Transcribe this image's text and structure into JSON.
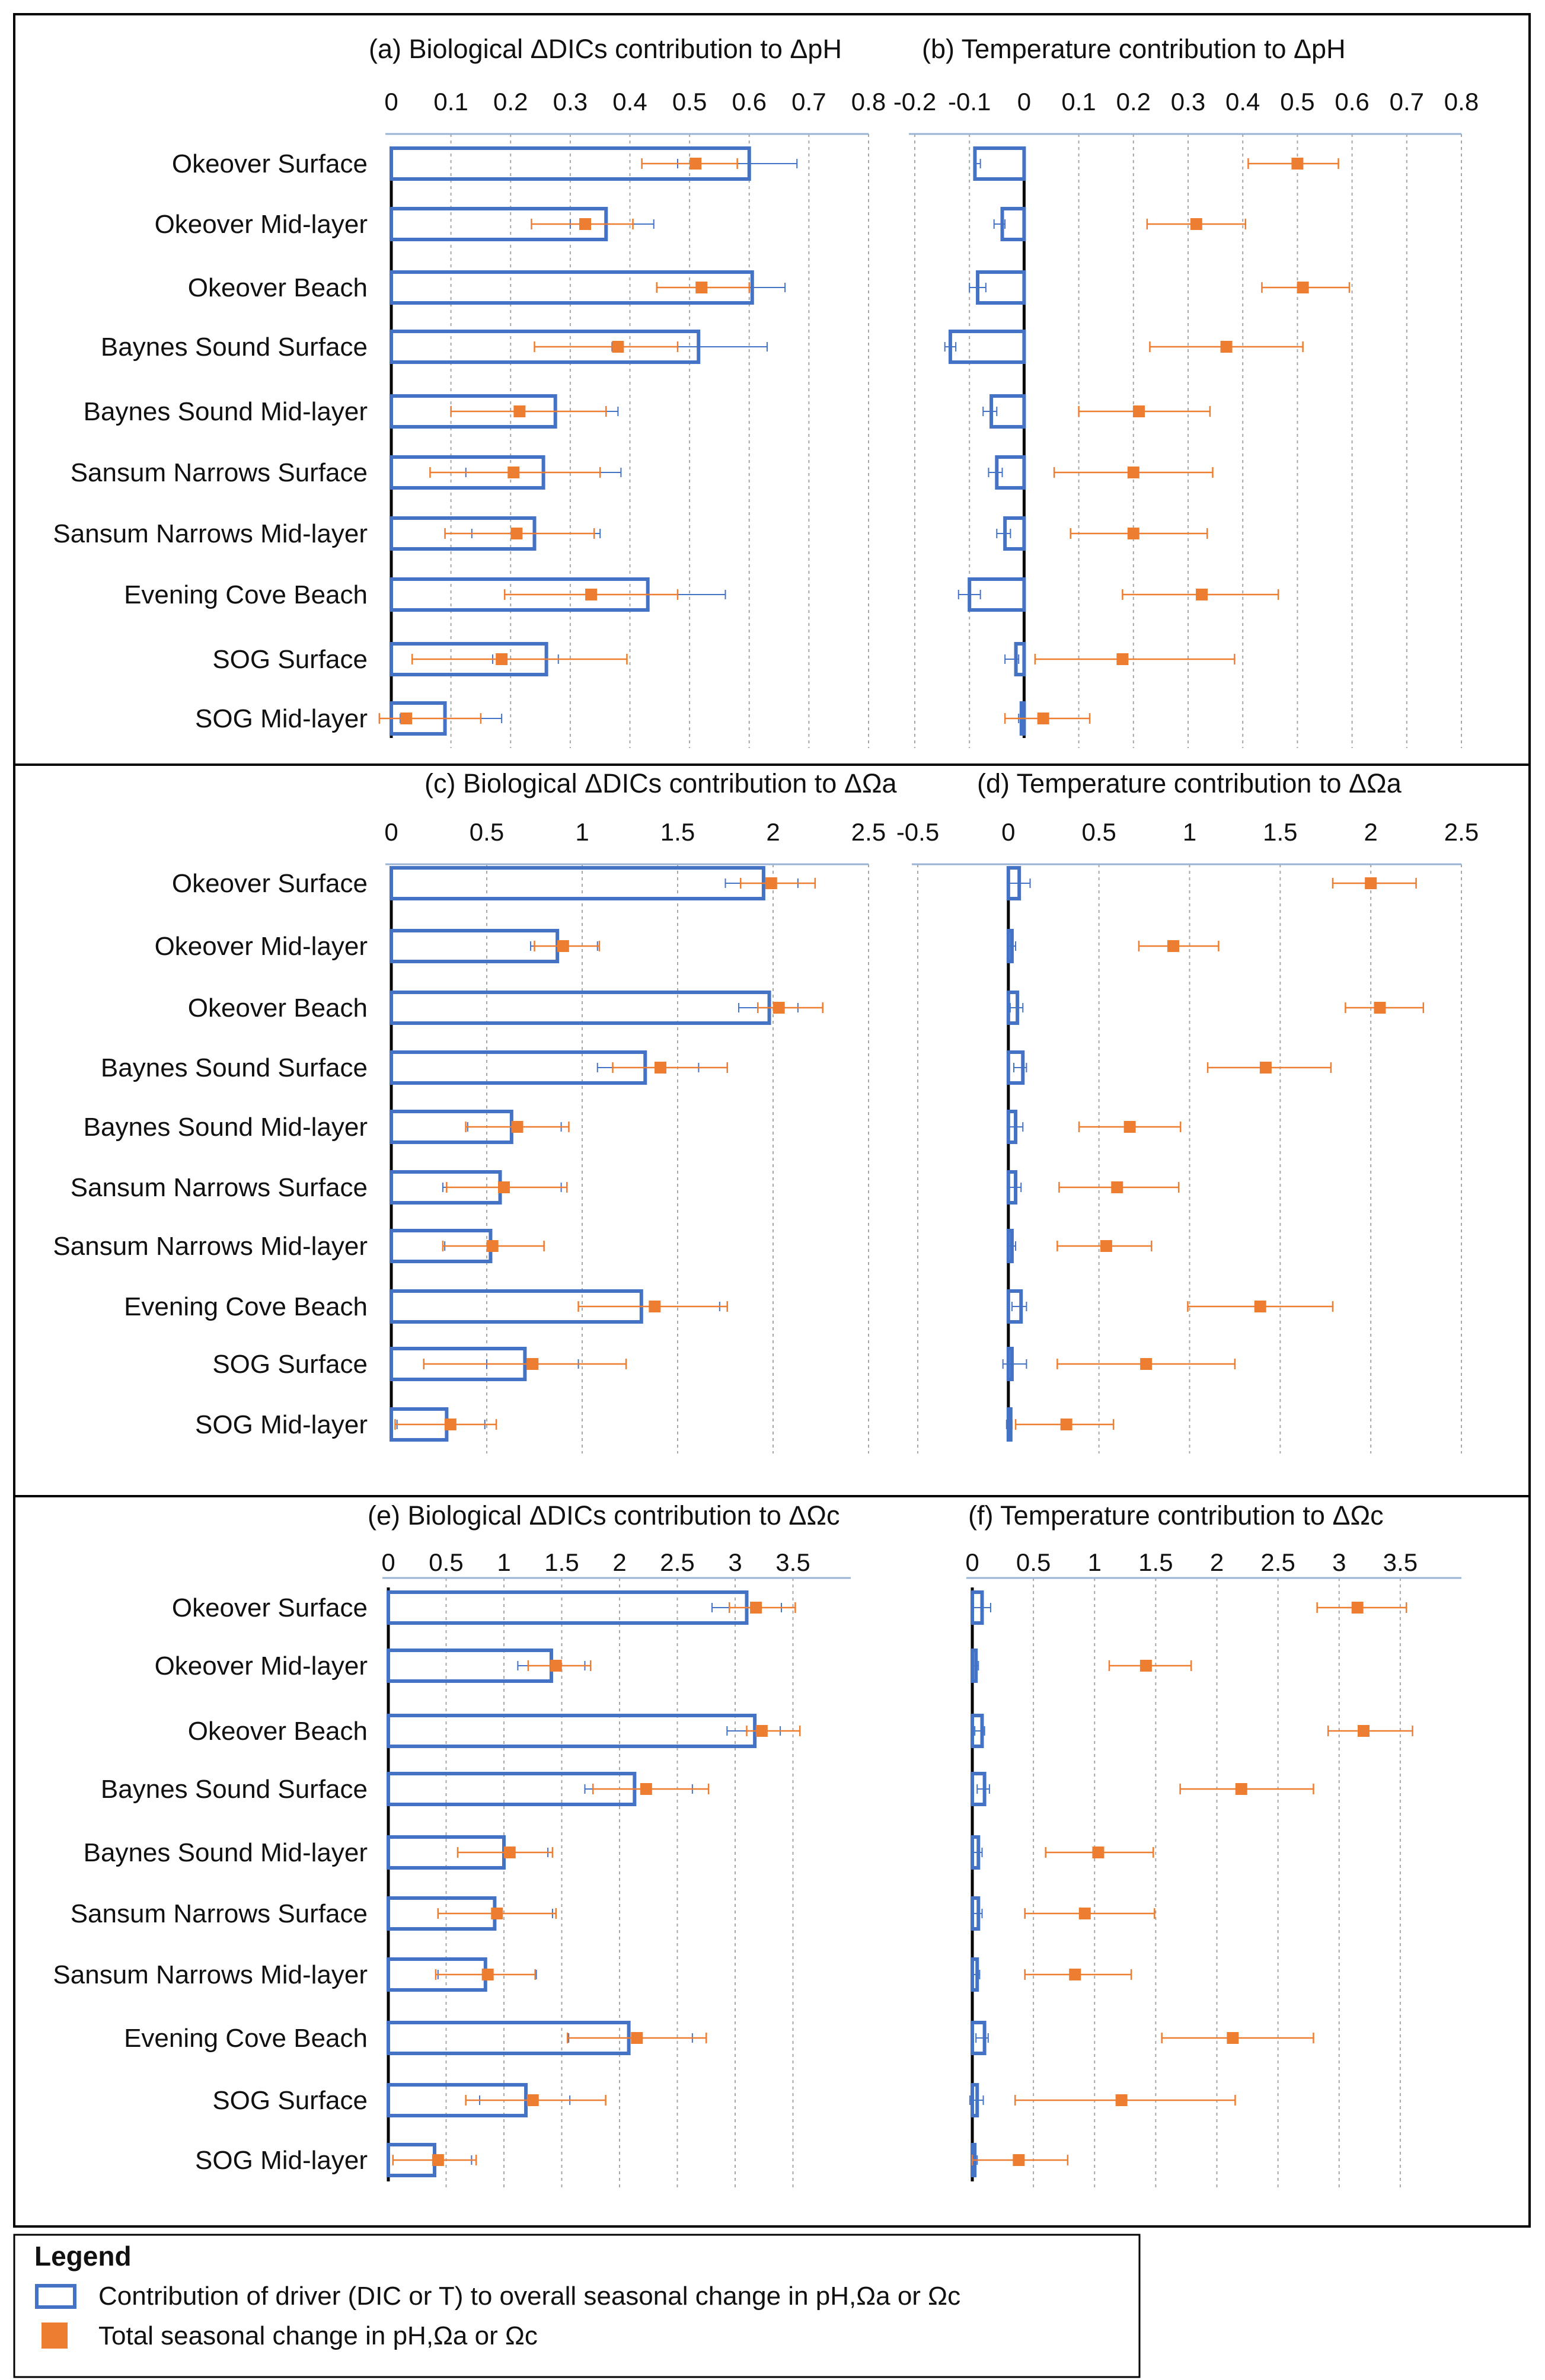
{
  "sites": [
    "Okeover Surface",
    "Okeover Mid-layer",
    "Okeover Beach",
    "Baynes Sound Surface",
    "Baynes Sound Mid-layer",
    "Sansum Narrows Surface",
    "Sansum Narrows Mid-layer",
    "Evening Cove Beach",
    "SOG Surface",
    "SOG Mid-layer"
  ],
  "legend": {
    "title": "Legend",
    "driver": "Contribution of driver (DIC or T) to overall seasonal change in pH,Ωa or Ωc",
    "total": "Total seasonal change in pH,Ωa or Ωc"
  },
  "colors": {
    "driver_bar": "#4472c4",
    "total_marker": "#ed7d31",
    "gridline": "#a6a6a6",
    "frame": "#000000",
    "axis_line": "#9bb3d4"
  },
  "chart_data": [
    {
      "id": "a",
      "type": "bar",
      "orientation": "horizontal",
      "title_prefix": "(a)",
      "title": "Biological ΔDICs contribution to ΔpH",
      "xlim": [
        0,
        0.8
      ],
      "ticks": [
        "0",
        "0.1",
        "0.2",
        "0.3",
        "0.4",
        "0.5",
        "0.6",
        "0.7",
        "0.8"
      ],
      "categories": [
        "Okeover Surface",
        "Okeover Mid-layer",
        "Okeover Beach",
        "Baynes Sound Surface",
        "Baynes Sound Mid-layer",
        "Sansum Narrows Surface",
        "Sansum Narrows Mid-layer",
        "Evening Cove Beach",
        "SOG Surface",
        "SOG Mid-layer"
      ],
      "series": [
        {
          "name": "Contribution of driver",
          "values": [
            0.6,
            0.36,
            0.605,
            0.515,
            0.275,
            0.255,
            0.24,
            0.43,
            0.26,
            0.09
          ],
          "err_low": [
            0.48,
            0.3,
            0.52,
            0.37,
            0.21,
            0.125,
            0.135,
            0.33,
            0.17,
            0.015
          ],
          "err_high": [
            0.68,
            0.44,
            0.66,
            0.63,
            0.38,
            0.385,
            0.35,
            0.56,
            0.28,
            0.185
          ]
        },
        {
          "name": "Total seasonal change",
          "values": [
            0.51,
            0.325,
            0.52,
            0.38,
            0.215,
            0.205,
            0.21,
            0.335,
            0.185,
            0.025
          ],
          "err_low": [
            0.42,
            0.235,
            0.445,
            0.24,
            0.1,
            0.065,
            0.09,
            0.19,
            0.035,
            -0.02
          ],
          "err_high": [
            0.58,
            0.405,
            0.6,
            0.48,
            0.36,
            0.35,
            0.34,
            0.48,
            0.395,
            0.15
          ]
        }
      ]
    },
    {
      "id": "b",
      "type": "bar",
      "orientation": "horizontal",
      "title_prefix": "(b)",
      "title": "Temperature contribution to ΔpH",
      "xlim": [
        -0.2,
        0.8
      ],
      "ticks": [
        "-0.2",
        "-0.1",
        "0",
        "0.1",
        "0.2",
        "0.3",
        "0.4",
        "0.5",
        "0.6",
        "0.7",
        "0.8"
      ],
      "categories": [
        "Okeover Surface",
        "Okeover Mid-layer",
        "Okeover Beach",
        "Baynes Sound Surface",
        "Baynes Sound Mid-layer",
        "Sansum Narrows Surface",
        "Sansum Narrows Mid-layer",
        "Evening Cove Beach",
        "SOG Surface",
        "SOG Mid-layer"
      ],
      "series": [
        {
          "name": "Contribution of driver",
          "values": [
            -0.09,
            -0.04,
            -0.085,
            -0.135,
            -0.06,
            -0.05,
            -0.035,
            -0.1,
            -0.015,
            -0.005
          ],
          "err_low": [
            -0.09,
            -0.055,
            -0.1,
            -0.145,
            -0.075,
            -0.065,
            -0.05,
            -0.12,
            -0.035,
            -0.01
          ],
          "err_high": [
            -0.08,
            -0.035,
            -0.07,
            -0.125,
            -0.05,
            -0.04,
            -0.025,
            -0.08,
            -0.01,
            0
          ]
        },
        {
          "name": "Total seasonal change",
          "values": [
            0.5,
            0.315,
            0.51,
            0.37,
            0.21,
            0.2,
            0.2,
            0.325,
            0.18,
            0.035
          ],
          "err_low": [
            0.41,
            0.225,
            0.435,
            0.23,
            0.1,
            0.055,
            0.085,
            0.18,
            0.02,
            -0.035
          ],
          "err_high": [
            0.575,
            0.405,
            0.595,
            0.51,
            0.34,
            0.345,
            0.335,
            0.465,
            0.385,
            0.12
          ]
        }
      ]
    },
    {
      "id": "c",
      "type": "bar",
      "orientation": "horizontal",
      "title_prefix": "(c)",
      "title": "Biological ΔDICs contribution to ΔΩa",
      "xlim": [
        0,
        2.5
      ],
      "ticks": [
        "0",
        "0.5",
        "1",
        "1.5",
        "2",
        "2.5"
      ],
      "categories": [
        "Okeover Surface",
        "Okeover Mid-layer",
        "Okeover Beach",
        "Baynes Sound Surface",
        "Baynes Sound Mid-layer",
        "Sansum Narrows Surface",
        "Sansum Narrows Mid-layer",
        "Evening Cove Beach",
        "SOG Surface",
        "SOG Mid-layer"
      ],
      "series": [
        {
          "name": "Contribution of driver",
          "values": [
            1.95,
            0.87,
            1.98,
            1.33,
            0.63,
            0.57,
            0.52,
            1.31,
            0.7,
            0.29
          ],
          "err_low": [
            1.75,
            0.73,
            1.82,
            1.08,
            0.4,
            0.27,
            0.28,
            0.98,
            0.5,
            0.03
          ],
          "err_high": [
            2.13,
            1.08,
            2.13,
            1.61,
            0.89,
            0.89,
            0.8,
            1.72,
            0.98,
            0.49
          ]
        },
        {
          "name": "Total seasonal change",
          "values": [
            1.99,
            0.9,
            2.03,
            1.41,
            0.66,
            0.59,
            0.53,
            1.38,
            0.74,
            0.31
          ],
          "err_low": [
            1.83,
            0.75,
            1.92,
            1.16,
            0.39,
            0.29,
            0.27,
            0.98,
            0.17,
            0.02
          ],
          "err_high": [
            2.22,
            1.09,
            2.26,
            1.76,
            0.93,
            0.92,
            0.8,
            1.76,
            1.23,
            0.55
          ]
        }
      ]
    },
    {
      "id": "d",
      "type": "bar",
      "orientation": "horizontal",
      "title_prefix": "(d)",
      "title": "Temperature contribution to ΔΩa",
      "xlim": [
        -0.5,
        2.5
      ],
      "ticks": [
        "-0.5",
        "0",
        "0.5",
        "1",
        "1.5",
        "2",
        "2.5"
      ],
      "categories": [
        "Okeover Surface",
        "Okeover Mid-layer",
        "Okeover Beach",
        "Baynes Sound Surface",
        "Baynes Sound Mid-layer",
        "Sansum Narrows Surface",
        "Sansum Narrows Mid-layer",
        "Evening Cove Beach",
        "SOG Surface",
        "SOG Mid-layer"
      ],
      "series": [
        {
          "name": "Contribution of driver",
          "values": [
            0.06,
            0.02,
            0.05,
            0.08,
            0.04,
            0.04,
            0.02,
            0.07,
            0.02,
            0.01
          ],
          "err_low": [
            0.0,
            0.0,
            0.01,
            0.03,
            0.0,
            0.0,
            0.0,
            0.02,
            -0.03,
            -0.01
          ],
          "err_high": [
            0.12,
            0.04,
            0.08,
            0.1,
            0.08,
            0.07,
            0.04,
            0.1,
            0.1,
            0.02
          ]
        },
        {
          "name": "Total seasonal change",
          "values": [
            2.0,
            0.91,
            2.05,
            1.42,
            0.67,
            0.6,
            0.54,
            1.39,
            0.76,
            0.32
          ],
          "err_low": [
            1.79,
            0.72,
            1.86,
            1.1,
            0.39,
            0.28,
            0.27,
            0.99,
            0.27,
            0.04
          ],
          "err_high": [
            2.25,
            1.16,
            2.29,
            1.78,
            0.95,
            0.94,
            0.79,
            1.79,
            1.25,
            0.58
          ]
        }
      ]
    },
    {
      "id": "e",
      "type": "bar",
      "orientation": "horizontal",
      "title_prefix": "(e)",
      "title": "Biological ΔDICs contribution to ΔΩc",
      "xlim": [
        0,
        4
      ],
      "ticks": [
        "0",
        "0.5",
        "1",
        "1.5",
        "2",
        "2.5",
        "3",
        "3.5"
      ],
      "categories": [
        "Okeover Surface",
        "Okeover Mid-layer",
        "Okeover Beach",
        "Baynes Sound Surface",
        "Baynes Sound Mid-layer",
        "Sansum Narrows Surface",
        "Sansum Narrows Mid-layer",
        "Evening Cove Beach",
        "SOG Surface",
        "SOG Mid-layer"
      ],
      "series": [
        {
          "name": "Contribution of driver",
          "values": [
            3.1,
            1.41,
            3.17,
            2.13,
            1.0,
            0.92,
            0.84,
            2.08,
            1.19,
            0.4
          ],
          "err_low": [
            2.8,
            1.12,
            2.93,
            1.7,
            0.6,
            0.43,
            0.43,
            1.56,
            0.79,
            0.04
          ],
          "err_high": [
            3.4,
            1.7,
            3.39,
            2.63,
            1.38,
            1.42,
            1.28,
            2.63,
            1.57,
            0.72
          ]
        },
        {
          "name": "Total seasonal change",
          "values": [
            3.18,
            1.45,
            3.23,
            2.23,
            1.05,
            0.94,
            0.86,
            2.15,
            1.25,
            0.43
          ],
          "err_low": [
            2.95,
            1.21,
            3.1,
            1.77,
            0.6,
            0.43,
            0.41,
            1.55,
            0.67,
            0.04
          ],
          "err_high": [
            3.52,
            1.75,
            3.56,
            2.77,
            1.42,
            1.45,
            1.27,
            2.75,
            1.88,
            0.76
          ]
        }
      ]
    },
    {
      "id": "f",
      "type": "bar",
      "orientation": "horizontal",
      "title_prefix": "(f)",
      "title": "Temperature contribution to ΔΩc",
      "xlim": [
        0,
        4
      ],
      "ticks": [
        "0",
        "0.5",
        "1",
        "1.5",
        "2",
        "2.5",
        "3",
        "3.5"
      ],
      "categories": [
        "Okeover Surface",
        "Okeover Mid-layer",
        "Okeover Beach",
        "Baynes Sound Surface",
        "Baynes Sound Mid-layer",
        "Sansum Narrows Surface",
        "Sansum Narrows Mid-layer",
        "Evening Cove Beach",
        "SOG Surface",
        "SOG Mid-layer"
      ],
      "series": [
        {
          "name": "Contribution of driver",
          "values": [
            0.08,
            0.03,
            0.08,
            0.1,
            0.05,
            0.05,
            0.04,
            0.1,
            0.04,
            0.02
          ],
          "err_low": [
            0.0,
            0.0,
            0.02,
            0.04,
            0.0,
            0.0,
            0.0,
            0.03,
            -0.02,
            0.0
          ],
          "err_high": [
            0.15,
            0.05,
            0.1,
            0.14,
            0.08,
            0.08,
            0.06,
            0.13,
            0.09,
            0.04
          ]
        },
        {
          "name": "Total seasonal change",
          "values": [
            3.15,
            1.42,
            3.2,
            2.2,
            1.03,
            0.92,
            0.84,
            2.13,
            1.22,
            0.38
          ],
          "err_low": [
            2.82,
            1.12,
            2.91,
            1.7,
            0.6,
            0.43,
            0.43,
            1.55,
            0.35,
            0.0
          ],
          "err_high": [
            3.55,
            1.79,
            3.6,
            2.79,
            1.48,
            1.49,
            1.3,
            2.79,
            2.15,
            0.78
          ]
        }
      ]
    }
  ]
}
